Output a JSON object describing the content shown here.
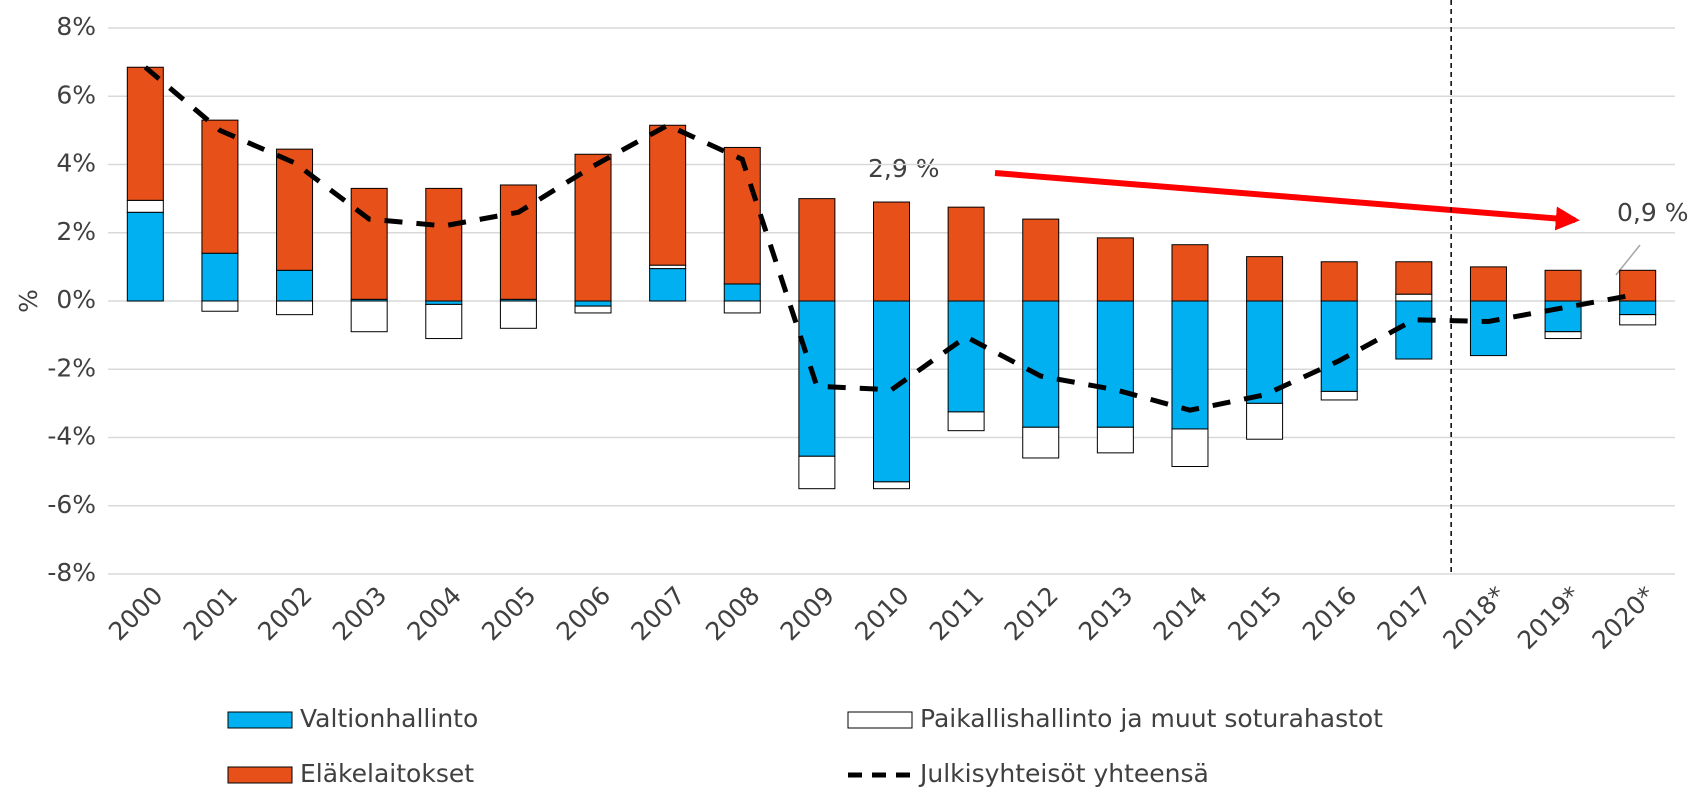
{
  "chart_data": {
    "type": "bar",
    "y_label": "%",
    "categories": [
      "2000",
      "2001",
      "2002",
      "2003",
      "2004",
      "2005",
      "2006",
      "2007",
      "2008",
      "2009",
      "2010",
      "2011",
      "2012",
      "2013",
      "2014",
      "2015",
      "2016",
      "2017",
      "2018*",
      "2019*",
      "2020*"
    ],
    "series": [
      {
        "name": "Valtionhallinto",
        "type": "bar",
        "color": "#00B0F0",
        "values": [
          2.6,
          1.4,
          0.9,
          0.05,
          -0.1,
          0.05,
          -0.15,
          0.95,
          0.5,
          -4.55,
          -5.3,
          -3.25,
          -3.7,
          -3.7,
          -3.75,
          -3.0,
          -2.65,
          -1.7,
          -1.6,
          -0.9,
          -0.4
        ]
      },
      {
        "name": "Paikallishallinto ja muut soturahastot",
        "type": "bar",
        "color": "#FFFFFF",
        "values": [
          0.35,
          -0.3,
          -0.4,
          -0.9,
          -1.0,
          -0.8,
          -0.2,
          0.1,
          -0.35,
          -0.95,
          -0.2,
          -0.55,
          -0.9,
          -0.75,
          -1.1,
          -1.05,
          -0.25,
          0.2,
          0,
          -0.2,
          -0.3
        ]
      },
      {
        "name": "Eläkelaitokset",
        "type": "bar",
        "color": "#E8501A",
        "values": [
          3.9,
          3.9,
          3.55,
          3.25,
          3.3,
          3.35,
          4.3,
          4.1,
          4.0,
          3.0,
          2.9,
          2.75,
          2.4,
          1.85,
          1.65,
          1.3,
          1.15,
          0.95,
          1.0,
          0.9,
          0.9
        ]
      },
      {
        "name": "Julkisyhteisöt yhteensä",
        "type": "line",
        "color": "#000000",
        "values": [
          6.85,
          5.0,
          4.05,
          2.4,
          2.2,
          2.6,
          3.95,
          5.15,
          4.15,
          -2.5,
          -2.6,
          -1.05,
          -2.2,
          -2.6,
          -3.2,
          -2.75,
          -1.75,
          -0.55,
          -0.6,
          -0.2,
          0.2
        ]
      }
    ],
    "ylim": [
      -8,
      8
    ],
    "yticks": [
      {
        "value": -8,
        "label": "-8%"
      },
      {
        "value": -6,
        "label": "-6%"
      },
      {
        "value": -4,
        "label": "-4%"
      },
      {
        "value": -2,
        "label": "-2%"
      },
      {
        "value": 0,
        "label": "0%"
      },
      {
        "value": 2,
        "label": "2%"
      },
      {
        "value": 4,
        "label": "4%"
      },
      {
        "value": 6,
        "label": "6%"
      },
      {
        "value": 8,
        "label": "8%"
      }
    ],
    "grid": true,
    "annotations": [
      {
        "text": "2,9 %"
      },
      {
        "text": "0,9 %"
      }
    ]
  }
}
